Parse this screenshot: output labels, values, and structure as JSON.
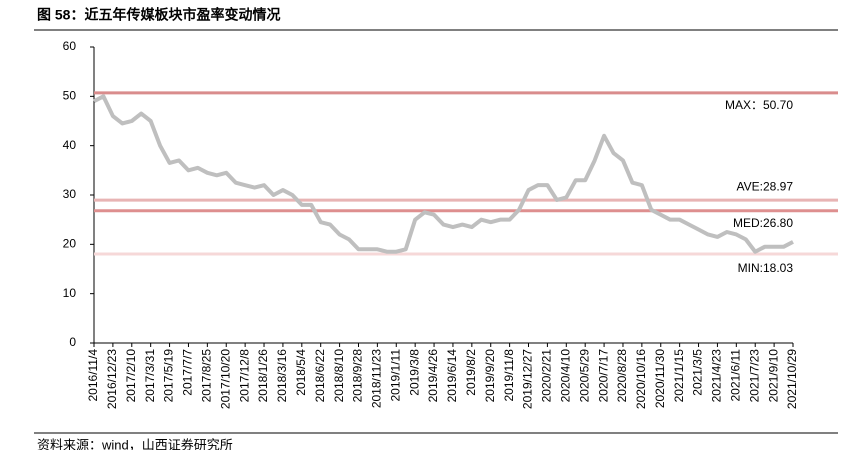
{
  "chart_data": {
    "type": "line",
    "title": "图 58：近五年传媒板块市盈率变动情况",
    "source": "资料来源：wind，山西证券研究所",
    "categories": [
      "2016/11/4",
      null,
      "2016/12/23",
      null,
      "2017/2/10",
      null,
      "2017/3/31",
      null,
      "2017/5/19",
      null,
      "2017/7/7",
      null,
      "2017/8/25",
      null,
      "2017/10/20",
      null,
      "2017/12/8",
      null,
      "2018/1/26",
      null,
      "2018/3/16",
      null,
      "2018/5/4",
      null,
      "2018/6/22",
      null,
      "2018/8/10",
      null,
      "2018/9/28",
      null,
      "2018/11/23",
      null,
      "2019/1/11",
      null,
      "2019/3/8",
      null,
      "2019/4/26",
      null,
      "2019/6/14",
      null,
      "2019/8/2",
      null,
      "2019/9/20",
      null,
      "2019/11/8",
      null,
      "2019/12/27",
      null,
      "2020/2/21",
      null,
      "2020/4/10",
      null,
      "2020/5/29",
      null,
      "2020/7/17",
      null,
      "2020/8/28",
      null,
      "2020/10/16",
      null,
      "2020/11/30",
      null,
      "2021/1/15",
      null,
      "2021/3/5",
      null,
      "2021/4/23",
      null,
      "2021/6/11",
      null,
      "2021/7/23",
      null,
      "2021/9/10",
      null,
      "2021/10/29"
    ],
    "series": [
      {
        "color": "#bfbfbf",
        "values": [
          49,
          50,
          46,
          44.5,
          45,
          46.5,
          45,
          40,
          36.5,
          37,
          35,
          35.5,
          34.5,
          34,
          34.5,
          32.5,
          32,
          31.5,
          32,
          30,
          31,
          30,
          28,
          28,
          24.5,
          24,
          22,
          21,
          19,
          19,
          19,
          18.5,
          18.5,
          19,
          25,
          26.5,
          26,
          24,
          23.5,
          24,
          23.5,
          25,
          24.5,
          25,
          25,
          27,
          31,
          32,
          32,
          29,
          29.5,
          33,
          33,
          37,
          42,
          38.5,
          37,
          32.5,
          32,
          27,
          26,
          25,
          25,
          24,
          23,
          22,
          21.5,
          22.5,
          22,
          21,
          18.5,
          19.5,
          19.5,
          19.5,
          20.5
        ]
      }
    ],
    "reference_lines": [
      {
        "label": "MAX：50.70",
        "value": 50.7,
        "color": "#d98c8c"
      },
      {
        "label": "AVE:28.97",
        "value": 28.97,
        "color": "#e8b4b4"
      },
      {
        "label": "MED:26.80",
        "value": 26.8,
        "color": "#de8f8f"
      },
      {
        "label": "MIN:18.03",
        "value": 18.03,
        "color": "#f6d8d8"
      }
    ],
    "ylim": [
      0,
      60
    ],
    "yticks": [
      0,
      10,
      20,
      30,
      40,
      50,
      60
    ]
  }
}
